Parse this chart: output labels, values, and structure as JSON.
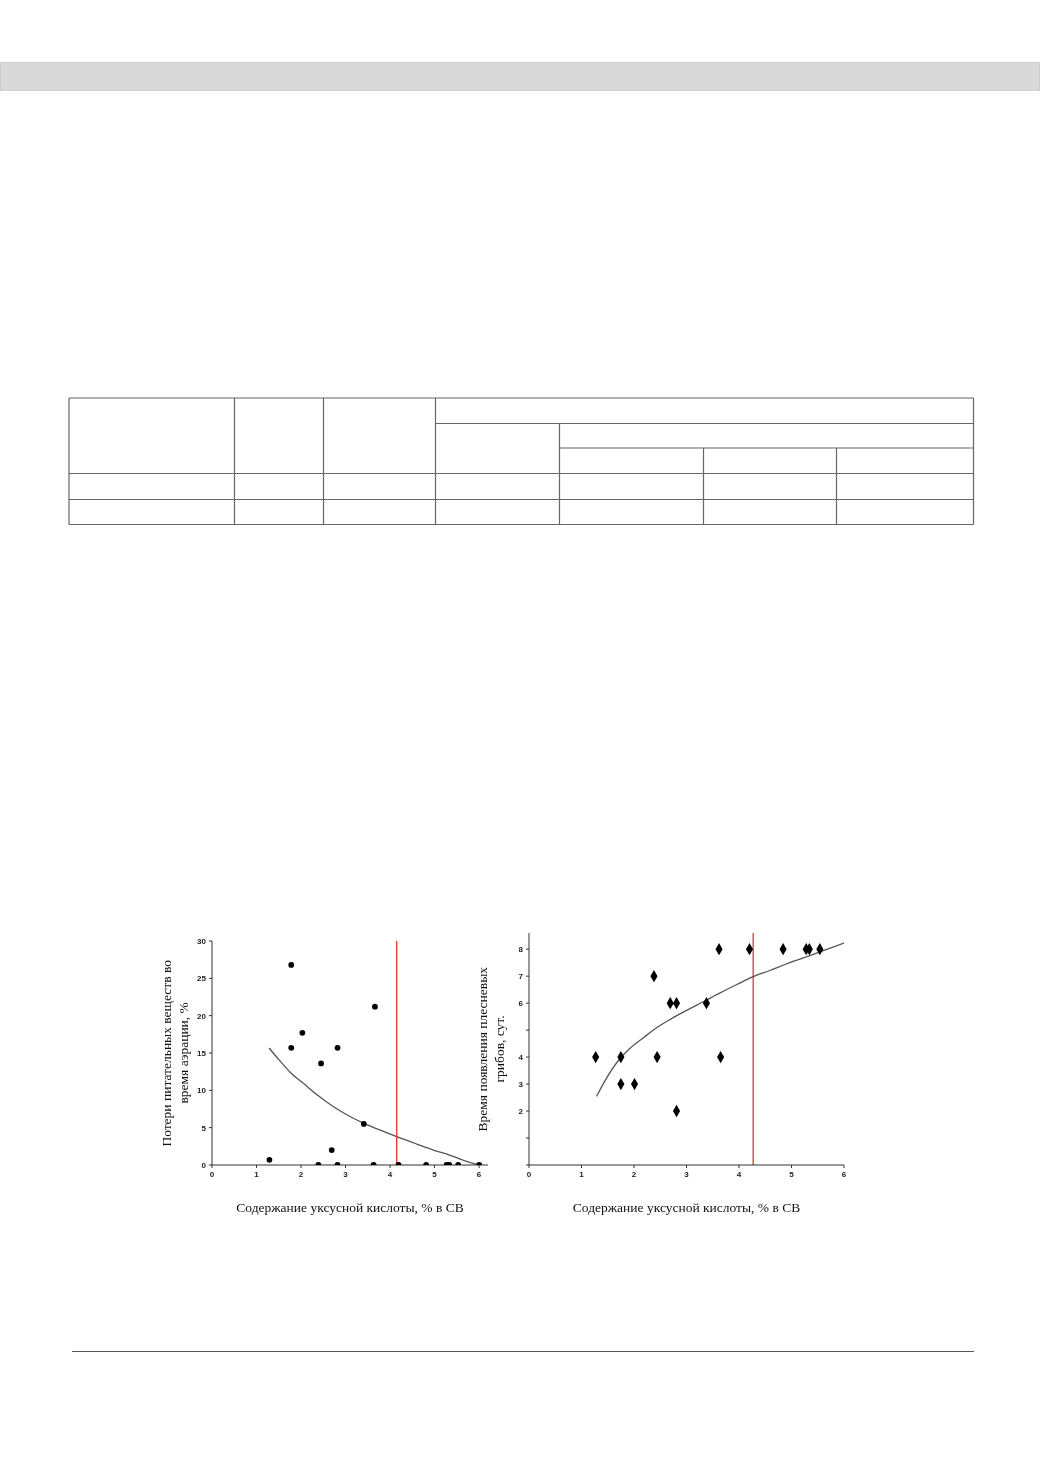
{
  "chart_data": [
    {
      "type": "scatter",
      "xlabel": "Содержание уксусной кислоты, % в СВ",
      "ylabel": "Потери питательных веществ во\nвремя аэрации, %",
      "xlim": [
        0,
        6.2
      ],
      "xticks": [
        0,
        1,
        2,
        3,
        4,
        5,
        6
      ],
      "ylim": [
        0,
        30
      ],
      "yticks": [
        0,
        5,
        10,
        15,
        20,
        25,
        30
      ],
      "series": [
        {
          "color": "#000000",
          "marker": "circle",
          "x": [
            1.29,
            1.78,
            1.78,
            2.03,
            2.39,
            2.45,
            2.69,
            2.82,
            2.82,
            3.41,
            3.63,
            3.66,
            4.19,
            4.81,
            5.27,
            5.33,
            5.53,
            6.0
          ],
          "values": [
            0.7,
            26.8,
            15.7,
            17.7,
            0,
            13.6,
            2.0,
            15.7,
            0,
            5.5,
            0,
            21.2,
            0,
            0,
            0,
            0,
            0,
            0
          ]
        },
        {
          "type": "line",
          "color": "#555555",
          "marker": "none",
          "x": [
            1.29,
            1.46,
            1.76,
            2.06,
            2.36,
            2.73,
            3.1,
            3.48,
            3.85,
            4.15,
            4.6,
            4.97,
            5.35,
            5.57,
            6.0
          ],
          "values": [
            15.6,
            14.4,
            12.4,
            10.9,
            9.4,
            7.8,
            6.5,
            5.4,
            4.5,
            3.8,
            2.8,
            2.0,
            1.3,
            0.8,
            0
          ]
        }
      ],
      "ref_lines": [
        {
          "axis": "x",
          "value": 4.15,
          "color": "#e02424"
        }
      ]
    },
    {
      "type": "scatter",
      "xlabel": "Содержание уксусной кислоты, % в СВ",
      "ylabel": "Время появления плесневых\nгрибов, сут.",
      "xlim": [
        0,
        6
      ],
      "xticks": [
        0,
        1,
        2,
        3,
        4,
        5,
        6
      ],
      "ylim": [
        0,
        8.6
      ],
      "yticks": [
        {
          "value": 0,
          "label": null
        },
        {
          "value": 1,
          "label": null
        },
        2,
        3,
        4,
        {
          "value": 5,
          "label": null
        },
        6,
        7,
        8
      ],
      "series": [
        {
          "color": "#000000",
          "marker": "diamond",
          "x": [
            1.27,
            1.75,
            1.75,
            2.01,
            2.38,
            2.44,
            2.69,
            2.81,
            2.81,
            3.38,
            3.62,
            3.65,
            4.2,
            4.84,
            5.28,
            5.34,
            5.54
          ],
          "values": [
            4,
            4,
            3,
            3,
            7,
            4,
            6,
            6,
            2,
            6,
            8,
            4,
            8,
            8,
            8,
            8,
            8
          ]
        },
        {
          "type": "line",
          "color": "#555555",
          "marker": "none",
          "x": [
            1.29,
            1.48,
            1.67,
            1.92,
            2.18,
            2.43,
            2.69,
            3.0,
            3.32,
            3.64,
            3.96,
            4.27,
            4.59,
            4.91,
            5.23,
            5.54,
            6.0
          ],
          "values": [
            2.56,
            3.23,
            3.79,
            4.32,
            4.72,
            5.09,
            5.4,
            5.73,
            6.05,
            6.38,
            6.69,
            6.98,
            7.21,
            7.46,
            7.68,
            7.9,
            8.23
          ]
        }
      ],
      "ref_lines": [
        {
          "axis": "x",
          "value": 4.27,
          "color": "#e02424"
        }
      ]
    }
  ]
}
